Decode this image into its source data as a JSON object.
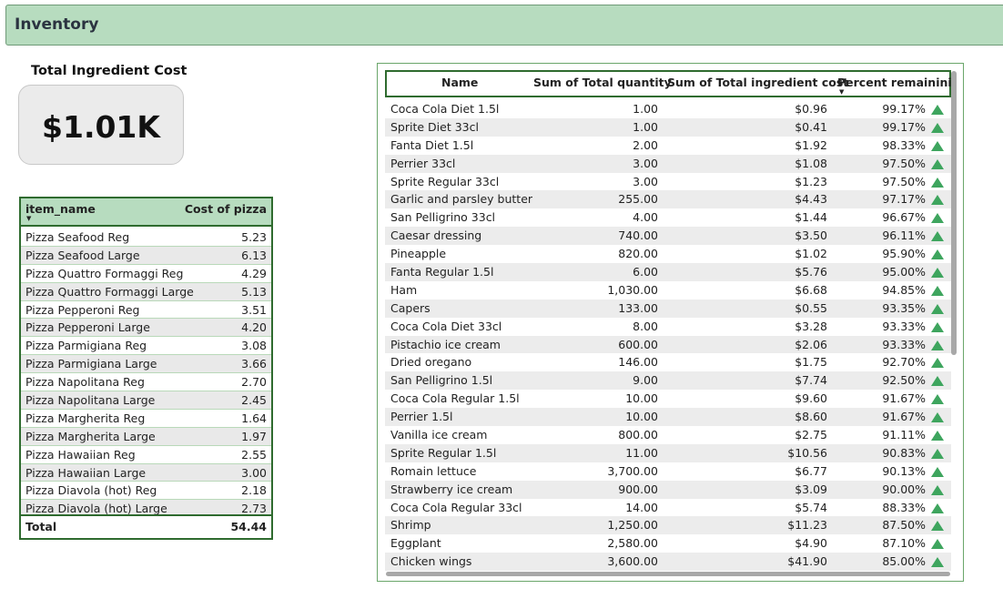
{
  "header": {
    "title": "Inventory"
  },
  "kpi": {
    "title": "Total Ingredient Cost",
    "value": "$1.01K"
  },
  "pizza_table": {
    "columns": [
      "item_name",
      "Cost of pizza"
    ],
    "rows": [
      {
        "name": "Pizza Seafood Reg",
        "cost": "5.23"
      },
      {
        "name": "Pizza Seafood Large",
        "cost": "6.13"
      },
      {
        "name": "Pizza Quattro Formaggi Reg",
        "cost": "4.29"
      },
      {
        "name": "Pizza Quattro Formaggi Large",
        "cost": "5.13"
      },
      {
        "name": "Pizza Pepperoni Reg",
        "cost": "3.51"
      },
      {
        "name": "Pizza Pepperoni Large",
        "cost": "4.20"
      },
      {
        "name": "Pizza Parmigiana Reg",
        "cost": "3.08"
      },
      {
        "name": "Pizza Parmigiana Large",
        "cost": "3.66"
      },
      {
        "name": "Pizza Napolitana Reg",
        "cost": "2.70"
      },
      {
        "name": "Pizza Napolitana Large",
        "cost": "2.45"
      },
      {
        "name": "Pizza Margherita Reg",
        "cost": "1.64"
      },
      {
        "name": "Pizza Margherita Large",
        "cost": "1.97"
      },
      {
        "name": "Pizza Hawaiian Reg",
        "cost": "2.55"
      },
      {
        "name": "Pizza Hawaiian Large",
        "cost": "3.00"
      },
      {
        "name": "Pizza Diavola (hot) Reg",
        "cost": "2.18"
      },
      {
        "name": "Pizza Diavola (hot) Large",
        "cost": "2.73"
      }
    ],
    "total_label": "Total",
    "total_value": "54.44"
  },
  "inventory_table": {
    "columns": [
      "Name",
      "Sum of Total quantity",
      "Sum of Total ingredient cost",
      "Percent remaininig"
    ],
    "rows": [
      {
        "name": "Coca Cola Diet 1.5l",
        "qty": "1.00",
        "cost": "$0.96",
        "pct": "99.17%"
      },
      {
        "name": "Sprite Diet 33cl",
        "qty": "1.00",
        "cost": "$0.41",
        "pct": "99.17%"
      },
      {
        "name": "Fanta Diet 1.5l",
        "qty": "2.00",
        "cost": "$1.92",
        "pct": "98.33%"
      },
      {
        "name": "Perrier 33cl",
        "qty": "3.00",
        "cost": "$1.08",
        "pct": "97.50%"
      },
      {
        "name": "Sprite Regular 33cl",
        "qty": "3.00",
        "cost": "$1.23",
        "pct": "97.50%"
      },
      {
        "name": "Garlic and parsley butter",
        "qty": "255.00",
        "cost": "$4.43",
        "pct": "97.17%"
      },
      {
        "name": "San Pelligrino 33cl",
        "qty": "4.00",
        "cost": "$1.44",
        "pct": "96.67%"
      },
      {
        "name": "Caesar dressing",
        "qty": "740.00",
        "cost": "$3.50",
        "pct": "96.11%"
      },
      {
        "name": "Pineapple",
        "qty": "820.00",
        "cost": "$1.02",
        "pct": "95.90%"
      },
      {
        "name": "Fanta Regular 1.5l",
        "qty": "6.00",
        "cost": "$5.76",
        "pct": "95.00%"
      },
      {
        "name": "Ham",
        "qty": "1,030.00",
        "cost": "$6.68",
        "pct": "94.85%"
      },
      {
        "name": "Capers",
        "qty": "133.00",
        "cost": "$0.55",
        "pct": "93.35%"
      },
      {
        "name": "Coca Cola Diet 33cl",
        "qty": "8.00",
        "cost": "$3.28",
        "pct": "93.33%"
      },
      {
        "name": "Pistachio ice cream",
        "qty": "600.00",
        "cost": "$2.06",
        "pct": "93.33%"
      },
      {
        "name": "Dried oregano",
        "qty": "146.00",
        "cost": "$1.75",
        "pct": "92.70%"
      },
      {
        "name": "San Pelligrino 1.5l",
        "qty": "9.00",
        "cost": "$7.74",
        "pct": "92.50%"
      },
      {
        "name": "Coca Cola Regular 1.5l",
        "qty": "10.00",
        "cost": "$9.60",
        "pct": "91.67%"
      },
      {
        "name": "Perrier 1.5l",
        "qty": "10.00",
        "cost": "$8.60",
        "pct": "91.67%"
      },
      {
        "name": "Vanilla ice cream",
        "qty": "800.00",
        "cost": "$2.75",
        "pct": "91.11%"
      },
      {
        "name": "Sprite Regular 1.5l",
        "qty": "11.00",
        "cost": "$10.56",
        "pct": "90.83%"
      },
      {
        "name": "Romain lettuce",
        "qty": "3,700.00",
        "cost": "$6.77",
        "pct": "90.13%"
      },
      {
        "name": "Strawberry ice cream",
        "qty": "900.00",
        "cost": "$3.09",
        "pct": "90.00%"
      },
      {
        "name": "Coca Cola Regular 33cl",
        "qty": "14.00",
        "cost": "$5.74",
        "pct": "88.33%"
      },
      {
        "name": "Shrimp",
        "qty": "1,250.00",
        "cost": "$11.23",
        "pct": "87.50%"
      },
      {
        "name": "Eggplant",
        "qty": "2,580.00",
        "cost": "$4.90",
        "pct": "87.10%"
      },
      {
        "name": "Chicken wings",
        "qty": "3,600.00",
        "cost": "$41.90",
        "pct": "85.00%"
      }
    ],
    "indicator_icon": "triangle-up-icon",
    "indicator_color": "#3ea55e"
  },
  "colors": {
    "header_bg": "#b7dcbf",
    "border_green": "#2f6b2f",
    "row_alt": "#e9e9e9"
  }
}
